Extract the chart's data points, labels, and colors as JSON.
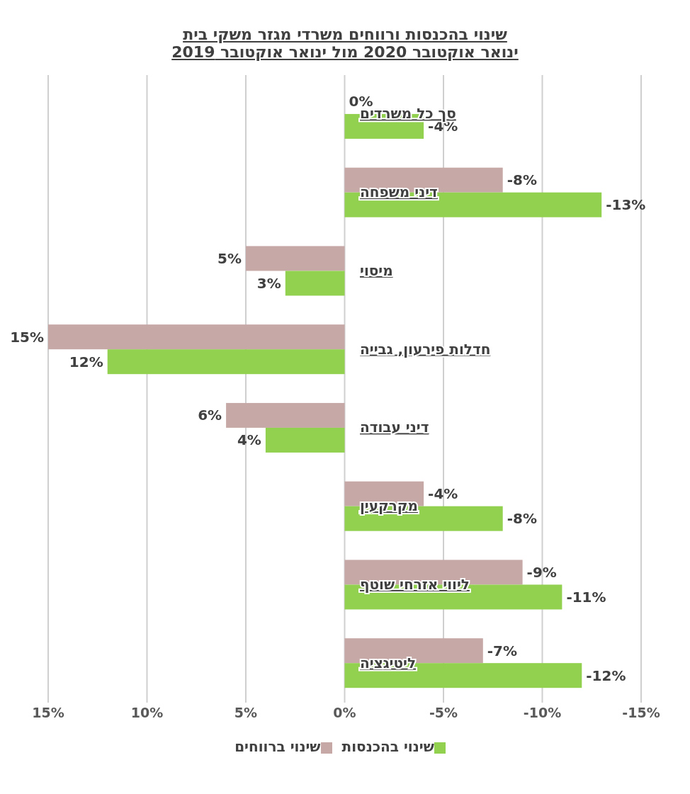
{
  "chart_data": {
    "type": "bar",
    "orientation": "horizontal",
    "title": "שינוי בהכנסות ורווחים משרדי מגזר משקי בית\nינואר אוקטובר 2020 מול ינואר אוקטובר 2019",
    "categories": [
      "סך כל משרדים",
      "דיני משפחה",
      "מיסוי",
      "חדלות פירעון, גבייה",
      "דיני עבודה",
      "מקרקעין",
      "ליווי אזרחי שוטף",
      "ליטיגציה"
    ],
    "series": [
      {
        "name": "שינוי ברווחים",
        "color": "#c6a8a6",
        "values": [
          0,
          -8,
          5,
          15,
          6,
          -4,
          -9,
          -7
        ],
        "value_labels": [
          "0%",
          "-8%",
          "5%",
          "15%",
          "6%",
          "-4%",
          "-9%",
          "-7%"
        ]
      },
      {
        "name": "שינוי בהכנסות",
        "color": "#92d050",
        "values": [
          -4,
          -13,
          3,
          12,
          4,
          -8,
          -11,
          -12
        ],
        "value_labels": [
          "-4%",
          "-13%",
          "3%",
          "12%",
          "4%",
          "-8%",
          "-11%",
          "-12%"
        ]
      }
    ],
    "xlim": [
      15,
      -15
    ],
    "xticks": [
      {
        "value": 15,
        "label": "15%"
      },
      {
        "value": 10,
        "label": "10%"
      },
      {
        "value": 5,
        "label": "5%"
      },
      {
        "value": 0,
        "label": "0%"
      },
      {
        "value": -5,
        "label": "-5%"
      },
      {
        "value": -10,
        "label": "-10%"
      },
      {
        "value": -15,
        "label": "-15%"
      }
    ],
    "grid": "x",
    "legend": "bottom"
  }
}
